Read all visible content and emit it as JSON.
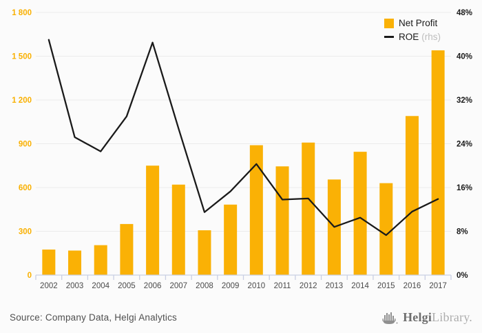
{
  "chart_data": {
    "type": "combo-bar-line",
    "categories": [
      "2002",
      "2003",
      "2004",
      "2005",
      "2006",
      "2007",
      "2008",
      "2009",
      "2010",
      "2011",
      "2012",
      "2013",
      "2014",
      "2015",
      "2016",
      "2017"
    ],
    "series": [
      {
        "name": "Net Profit",
        "type": "bar",
        "axis": "left",
        "values": [
          175,
          168,
          205,
          350,
          750,
          620,
          307,
          483,
          890,
          745,
          908,
          655,
          845,
          630,
          1090,
          1540
        ]
      },
      {
        "name": "ROE",
        "type": "line",
        "axis": "right",
        "values": [
          43.0,
          25.2,
          22.6,
          29.0,
          42.5,
          26.8,
          11.5,
          15.3,
          20.3,
          13.8,
          14.0,
          8.8,
          10.5,
          7.3,
          11.6,
          13.9
        ]
      }
    ],
    "left_axis": {
      "min": 0,
      "max": 1800,
      "step": 300,
      "tick_labels": [
        "0",
        "300",
        "600",
        "900",
        "1 200",
        "1 500",
        "1 800"
      ]
    },
    "right_axis": {
      "min": 0,
      "max": 48,
      "step": 8,
      "tick_labels": [
        "0%",
        "8%",
        "16%",
        "24%",
        "32%",
        "40%",
        "48%"
      ]
    },
    "grid": true,
    "legend_position": "top-right",
    "title": "",
    "xlabel": "",
    "ylabel": ""
  },
  "legend": {
    "net_profit_label": "Net Profit",
    "roe_label": "ROE",
    "roe_suffix": "(rhs)"
  },
  "footer": {
    "source": "Source: Company Data, Helgi Analytics",
    "logo_helgi": "Helgi",
    "logo_library": "Library."
  },
  "colors": {
    "bar": "#FAB105",
    "line": "#1A1A1A",
    "left_tick_label": "#F9B000",
    "right_tick_label": "#1A1A1A",
    "year_label": "#4A4A4A",
    "grid": "#EBEBEB",
    "axis": "#C9CFE3",
    "background": "#FBFBFB"
  }
}
